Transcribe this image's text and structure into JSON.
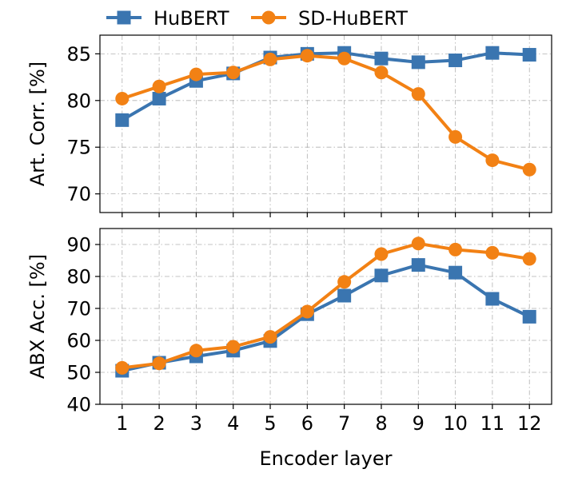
{
  "legend": {
    "placement": "top-center",
    "entries": [
      {
        "name": "HuBERT",
        "color": "#3a75b0",
        "marker": "square"
      },
      {
        "name": "SD-HuBERT",
        "color": "#f28114",
        "marker": "circle"
      }
    ]
  },
  "chart_data": [
    {
      "type": "line",
      "xlabel": "",
      "ylabel": "Art. Corr. [%]",
      "x": [
        1,
        2,
        3,
        4,
        5,
        6,
        7,
        8,
        9,
        10,
        11,
        12
      ],
      "xlim": [
        0.4,
        12.6
      ],
      "ylim": [
        68,
        87
      ],
      "yticks": [
        70,
        75,
        80,
        85
      ],
      "grid": true,
      "series": [
        {
          "name": "HuBERT",
          "color": "#3a75b0",
          "marker": "square",
          "values": [
            77.9,
            80.2,
            82.1,
            82.9,
            84.6,
            85.0,
            85.1,
            84.5,
            84.1,
            84.3,
            85.1,
            84.9
          ]
        },
        {
          "name": "SD-HuBERT",
          "color": "#f28114",
          "marker": "circle",
          "values": [
            80.2,
            81.5,
            82.8,
            83.0,
            84.4,
            84.8,
            84.5,
            83.0,
            80.7,
            76.1,
            73.6,
            72.6
          ]
        }
      ]
    },
    {
      "type": "line",
      "xlabel": "Encoder layer",
      "ylabel": "ABX Acc. [%]",
      "x": [
        1,
        2,
        3,
        4,
        5,
        6,
        7,
        8,
        9,
        10,
        11,
        12
      ],
      "xticks": [
        1,
        2,
        3,
        4,
        5,
        6,
        7,
        8,
        9,
        10,
        11,
        12
      ],
      "xlim": [
        0.4,
        12.6
      ],
      "ylim": [
        40,
        95
      ],
      "yticks": [
        40,
        50,
        60,
        70,
        80,
        90
      ],
      "grid": true,
      "series": [
        {
          "name": "HuBERT",
          "color": "#3a75b0",
          "marker": "square",
          "values": [
            50.5,
            53.0,
            55.0,
            56.8,
            59.8,
            68.2,
            74.0,
            80.3,
            83.6,
            81.2,
            73.0,
            67.4
          ]
        },
        {
          "name": "SD-HuBERT",
          "color": "#f28114",
          "marker": "circle",
          "values": [
            51.4,
            52.8,
            56.8,
            58.0,
            61.1,
            69.0,
            78.3,
            87.0,
            90.3,
            88.4,
            87.4,
            85.5
          ]
        }
      ]
    }
  ]
}
